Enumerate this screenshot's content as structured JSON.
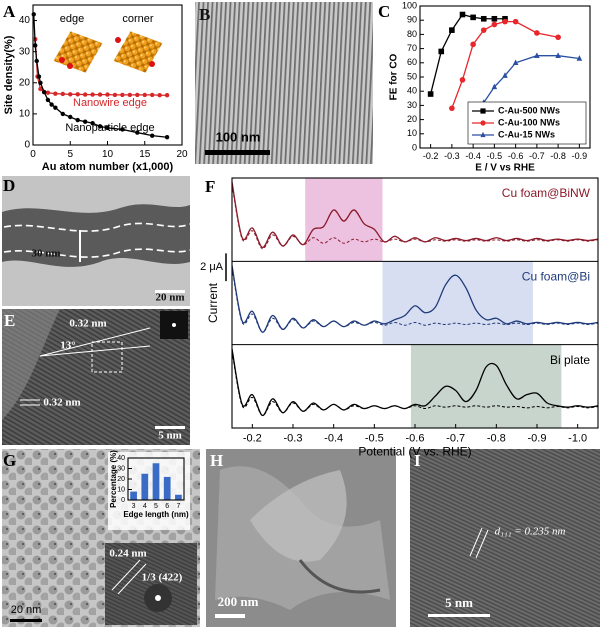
{
  "chart_data": [
    {
      "type": "line",
      "ylabel": "Site density(%)",
      "xlabel": "Au atom number (x1,000)",
      "annotations": [
        "edge",
        "corner"
      ],
      "xlim": [
        0,
        20
      ],
      "ylim": [
        0,
        45
      ],
      "xticks": [
        0,
        5,
        10,
        15,
        20
      ],
      "yticks": [
        0,
        10,
        20,
        30,
        40
      ],
      "legend": "inline",
      "series": [
        {
          "name": "Nanowire edge",
          "color": "#d62728",
          "marker": "circle",
          "x": [
            0.3,
            0.6,
            1,
            1.5,
            2,
            3,
            4,
            5,
            6,
            7,
            8,
            9,
            10,
            11,
            12,
            13,
            14,
            15,
            16,
            17,
            18
          ],
          "values": [
            34,
            22,
            18,
            17,
            16.8,
            16.5,
            16.4,
            16.3,
            16.3,
            16.2,
            16.2,
            16.2,
            16.2,
            16.1,
            16.1,
            16.1,
            16.1,
            16.1,
            16.1,
            16,
            16
          ]
        },
        {
          "name": "Nanoparticle edge",
          "color": "#000000",
          "marker": "circle",
          "x": [
            0.1,
            0.3,
            0.5,
            0.8,
            1,
            1.5,
            2,
            2.5,
            3,
            4,
            5,
            6,
            7,
            8,
            9,
            10,
            12,
            14,
            16,
            18
          ],
          "values": [
            42,
            32,
            27,
            22,
            20,
            17,
            14.5,
            13,
            12,
            10,
            9,
            8,
            7.5,
            7,
            6,
            5.5,
            5,
            4,
            3,
            2.5
          ]
        }
      ]
    },
    {
      "type": "line",
      "ylabel": "FE for CO",
      "xlabel": "E / V vs RHE",
      "xlim": [
        -0.15,
        -0.95
      ],
      "ylim": [
        0,
        100
      ],
      "xticks": [
        -0.2,
        -0.3,
        -0.4,
        -0.5,
        -0.6,
        -0.7,
        -0.8,
        -0.9
      ],
      "yticks": [
        0,
        10,
        20,
        30,
        40,
        50,
        60,
        70,
        80,
        90,
        100
      ],
      "legend": "lower right",
      "series": [
        {
          "name": "C-Au-500 NWs",
          "color": "#000000",
          "marker": "square",
          "x": [
            -0.2,
            -0.25,
            -0.3,
            -0.35,
            -0.4,
            -0.45,
            -0.5,
            -0.55
          ],
          "values": [
            38,
            68,
            83,
            94,
            92,
            91,
            91,
            91
          ]
        },
        {
          "name": "C-Au-100 NWs",
          "color": "#e8262b",
          "marker": "circle",
          "x": [
            -0.3,
            -0.35,
            -0.4,
            -0.45,
            -0.5,
            -0.55,
            -0.6,
            -0.7,
            -0.8
          ],
          "values": [
            28,
            48,
            73,
            83,
            87,
            89,
            89,
            81,
            78
          ]
        },
        {
          "name": "C-Au-15 NWs",
          "color": "#2b4fa3",
          "marker": "triangle",
          "x": [
            -0.4,
            -0.45,
            -0.5,
            -0.55,
            -0.6,
            -0.7,
            -0.8,
            -0.9
          ],
          "values": [
            23,
            32,
            43,
            51,
            60,
            65,
            65,
            63
          ]
        }
      ]
    },
    {
      "type": "line",
      "ylabel": "Current",
      "xlabel": "Potential (V vs. RHE)",
      "scale_bar": {
        "value": 2,
        "label": "2 μA"
      },
      "xlim": [
        -0.15,
        -1.05
      ],
      "ylim": [
        -1.5,
        4.5
      ],
      "xticks": [
        -0.2,
        -0.3,
        -0.4,
        -0.5,
        -0.6,
        -0.7,
        -0.8,
        -0.9,
        {
          "value": -1,
          "label": "-1.0"
        }
      ],
      "x": [
        -0.15,
        -0.175,
        -0.2,
        -0.225,
        -0.25,
        -0.275,
        -0.3,
        -0.325,
        -0.35,
        -0.375,
        -0.4,
        -0.425,
        -0.45,
        -0.475,
        -0.5,
        -0.525,
        -0.55,
        -0.575,
        -0.6,
        -0.625,
        -0.65,
        -0.675,
        -0.7,
        -0.725,
        -0.75,
        -0.775,
        -0.8,
        -0.825,
        -0.85,
        -0.875,
        -0.9,
        -0.925,
        -0.95,
        -0.975,
        -1.0,
        -1.025,
        -1.05
      ],
      "panels": [
        {
          "name": "Cu foam@BiNW",
          "color": "#8b1a2a",
          "band": [
            -0.33,
            -0.52
          ],
          "band_color": "#e9b3d9",
          "series": [
            {
              "style": "solid",
              "values": [
                4.2,
                0.2,
                0.9,
                -0.5,
                0.6,
                -0.4,
                0.4,
                -0.3,
                0.8,
                1.0,
                2.2,
                1.4,
                2.2,
                1.2,
                0.8,
                -0.1,
                0.3,
                -0.1,
                0.2,
                -0.1,
                0.2,
                0,
                0.15,
                0,
                0.15,
                0,
                0.2,
                0,
                0.15,
                0,
                0.15,
                0,
                0.1,
                0,
                0.1,
                0,
                0.1
              ]
            },
            {
              "style": "dashed",
              "values": [
                4.0,
                0.1,
                0.7,
                -0.6,
                0.4,
                -0.4,
                0.3,
                -0.3,
                0.2,
                -0.2,
                0.2,
                -0.2,
                0.1,
                -0.1,
                0.1,
                -0.1,
                0.1,
                -0.1,
                0.1,
                -0.1,
                0.05,
                -0.05,
                0.05,
                -0.05,
                0.05,
                -0.05,
                0.05,
                -0.05,
                0.05,
                -0.05,
                0.05,
                -0.05,
                0.05,
                -0.05,
                0.05,
                -0.05,
                0.05
              ]
            }
          ]
        },
        {
          "name": "Cu foam@Bi",
          "color": "#1f3a7a",
          "band": [
            -0.52,
            -0.89
          ],
          "band_color": "#cdd6ef",
          "series": [
            {
              "style": "solid",
              "values": [
                4.2,
                0.2,
                0.9,
                -0.6,
                0.6,
                -0.4,
                0.4,
                -0.3,
                0.3,
                -0.2,
                0.2,
                -0.2,
                0.2,
                -0.1,
                0.2,
                0,
                0.3,
                0.6,
                1.3,
                0.8,
                1.2,
                2.8,
                3.5,
                2.6,
                1.0,
                0.3,
                0.4,
                0,
                0.2,
                0,
                0.1,
                0,
                0.1,
                0,
                0.1,
                0,
                0.1
              ]
            },
            {
              "style": "dashed",
              "values": [
                4.0,
                0.1,
                0.7,
                -0.6,
                0.4,
                -0.4,
                0.3,
                -0.3,
                0.2,
                -0.2,
                0.2,
                -0.2,
                0.1,
                -0.1,
                0.1,
                -0.1,
                0.1,
                -0.1,
                0.1,
                -0.1,
                0.05,
                -0.05,
                0.05,
                -0.05,
                0.05,
                -0.05,
                0.05,
                -0.05,
                0.05,
                -0.05,
                0.05,
                -0.05,
                0.05,
                -0.05,
                0.05,
                -0.05,
                0.05
              ]
            }
          ]
        },
        {
          "name": "Bi plate",
          "color": "#000000",
          "band": [
            -0.59,
            -0.96
          ],
          "band_color": "#b9cbbf",
          "series": [
            {
              "style": "solid",
              "values": [
                4.2,
                0.2,
                0.9,
                -0.6,
                0.6,
                -0.4,
                0.4,
                -0.3,
                0.3,
                -0.2,
                0.2,
                -0.2,
                0.2,
                -0.1,
                0.1,
                -0.1,
                0.1,
                -0.1,
                0.2,
                0.1,
                0.8,
                1.5,
                1.2,
                0.4,
                1.2,
                2.9,
                3.0,
                1.6,
                0.6,
                0.9,
                1.0,
                0.3,
                0.1,
                0,
                0.1,
                0,
                0.1
              ]
            },
            {
              "style": "dashed",
              "values": [
                4.0,
                0.1,
                0.7,
                -0.6,
                0.4,
                -0.4,
                0.3,
                -0.3,
                0.2,
                -0.2,
                0.2,
                -0.2,
                0.1,
                -0.1,
                0.1,
                -0.1,
                0.1,
                -0.1,
                0.1,
                -0.1,
                0.1,
                0,
                0.1,
                0,
                0.1,
                0,
                0.1,
                0,
                0.05,
                -0.05,
                0.05,
                -0.05,
                0.05,
                -0.05,
                0.05,
                -0.05,
                0.05
              ]
            }
          ]
        }
      ]
    },
    {
      "type": "bar",
      "ylabel": "Percentage (%)",
      "xlabel": "Edge length (nm)",
      "categories": [
        "3",
        "4",
        "5",
        "6",
        "7"
      ],
      "values": [
        8,
        25,
        35,
        22,
        5
      ],
      "color": "#3a6cc6",
      "ylim": [
        0,
        40
      ],
      "yticks": [
        0,
        10,
        20,
        30,
        40
      ]
    }
  ],
  "panel_labels": [
    "A",
    "B",
    "C",
    "D",
    "E",
    "F",
    "G",
    "H",
    "I"
  ],
  "images": {
    "B": {
      "scale_bar": "100 nm"
    },
    "D": {
      "width": "30 nm",
      "scale_bar": "20 nm"
    },
    "E": {
      "spacing_top": "0.32 nm",
      "angle": "13°",
      "spacing_bottom": "0.32 nm",
      "scale_bar": "5 nm"
    },
    "G": {
      "scale_bar": "20 nm",
      "lattice": "0.24 nm",
      "fft": "1/3 (422)"
    },
    "H": {
      "scale_bar": "200 nm"
    },
    "I": {
      "lattice": "d₁₁₁ = 0.235 nm",
      "scale_bar": "5 nm"
    }
  }
}
